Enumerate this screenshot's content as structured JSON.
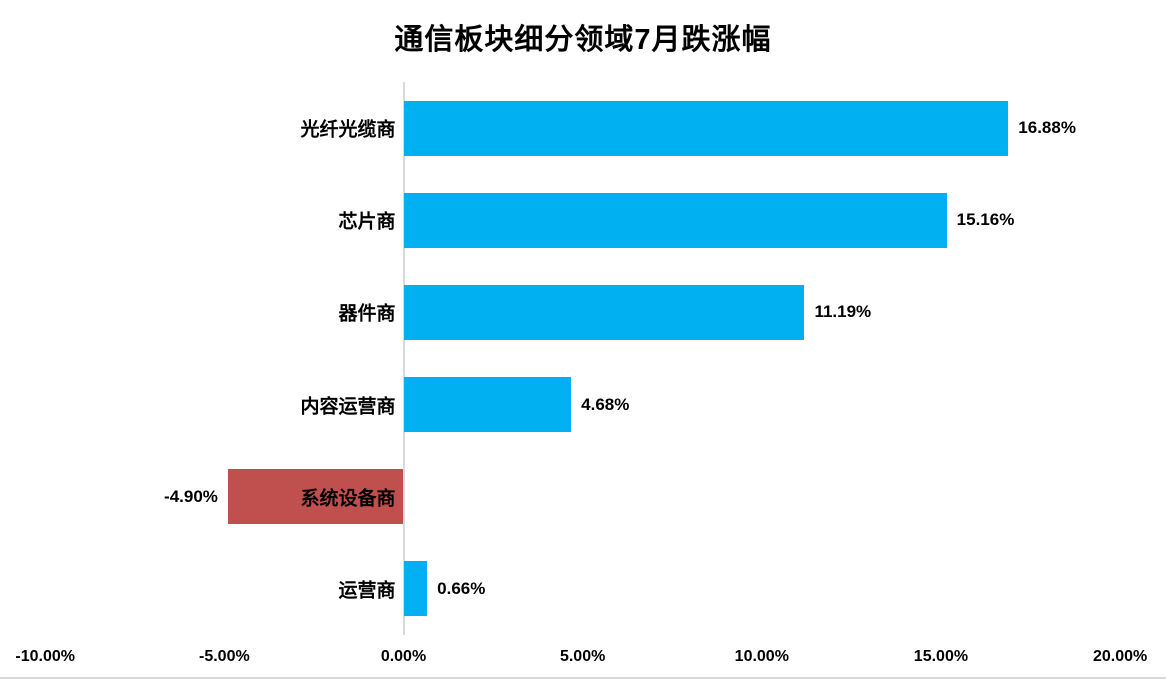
{
  "chart_data": {
    "type": "bar",
    "orientation": "horizontal",
    "title": "通信板块细分领域7月跌涨幅",
    "categories": [
      "光纤光缆商",
      "芯片商",
      "器件商",
      "内容运营商",
      "系统设备商",
      "运营商"
    ],
    "values": [
      16.88,
      15.16,
      11.19,
      4.68,
      -4.9,
      0.66
    ],
    "value_labels": [
      "16.88%",
      "15.16%",
      "11.19%",
      "4.68%",
      "-4.90%",
      "0.66%"
    ],
    "x_ticks": [
      {
        "label": "-10.00%",
        "value": -10
      },
      {
        "label": "-5.00%",
        "value": -5
      },
      {
        "label": "0.00%",
        "value": 0
      },
      {
        "label": "5.00%",
        "value": 5
      },
      {
        "label": "10.00%",
        "value": 10
      },
      {
        "label": "15.00%",
        "value": 15
      },
      {
        "label": "20.00%",
        "value": 20
      }
    ],
    "xlim": [
      -10,
      20
    ],
    "ylabel": "",
    "xlabel": "",
    "grid": false,
    "legend": "none",
    "colors": {
      "positive_bar": "#00B0F0",
      "negative_bar": "#C0504D",
      "axis_line": "#D9D9D9",
      "text": "#000000",
      "background": "#FFFFFF"
    }
  }
}
